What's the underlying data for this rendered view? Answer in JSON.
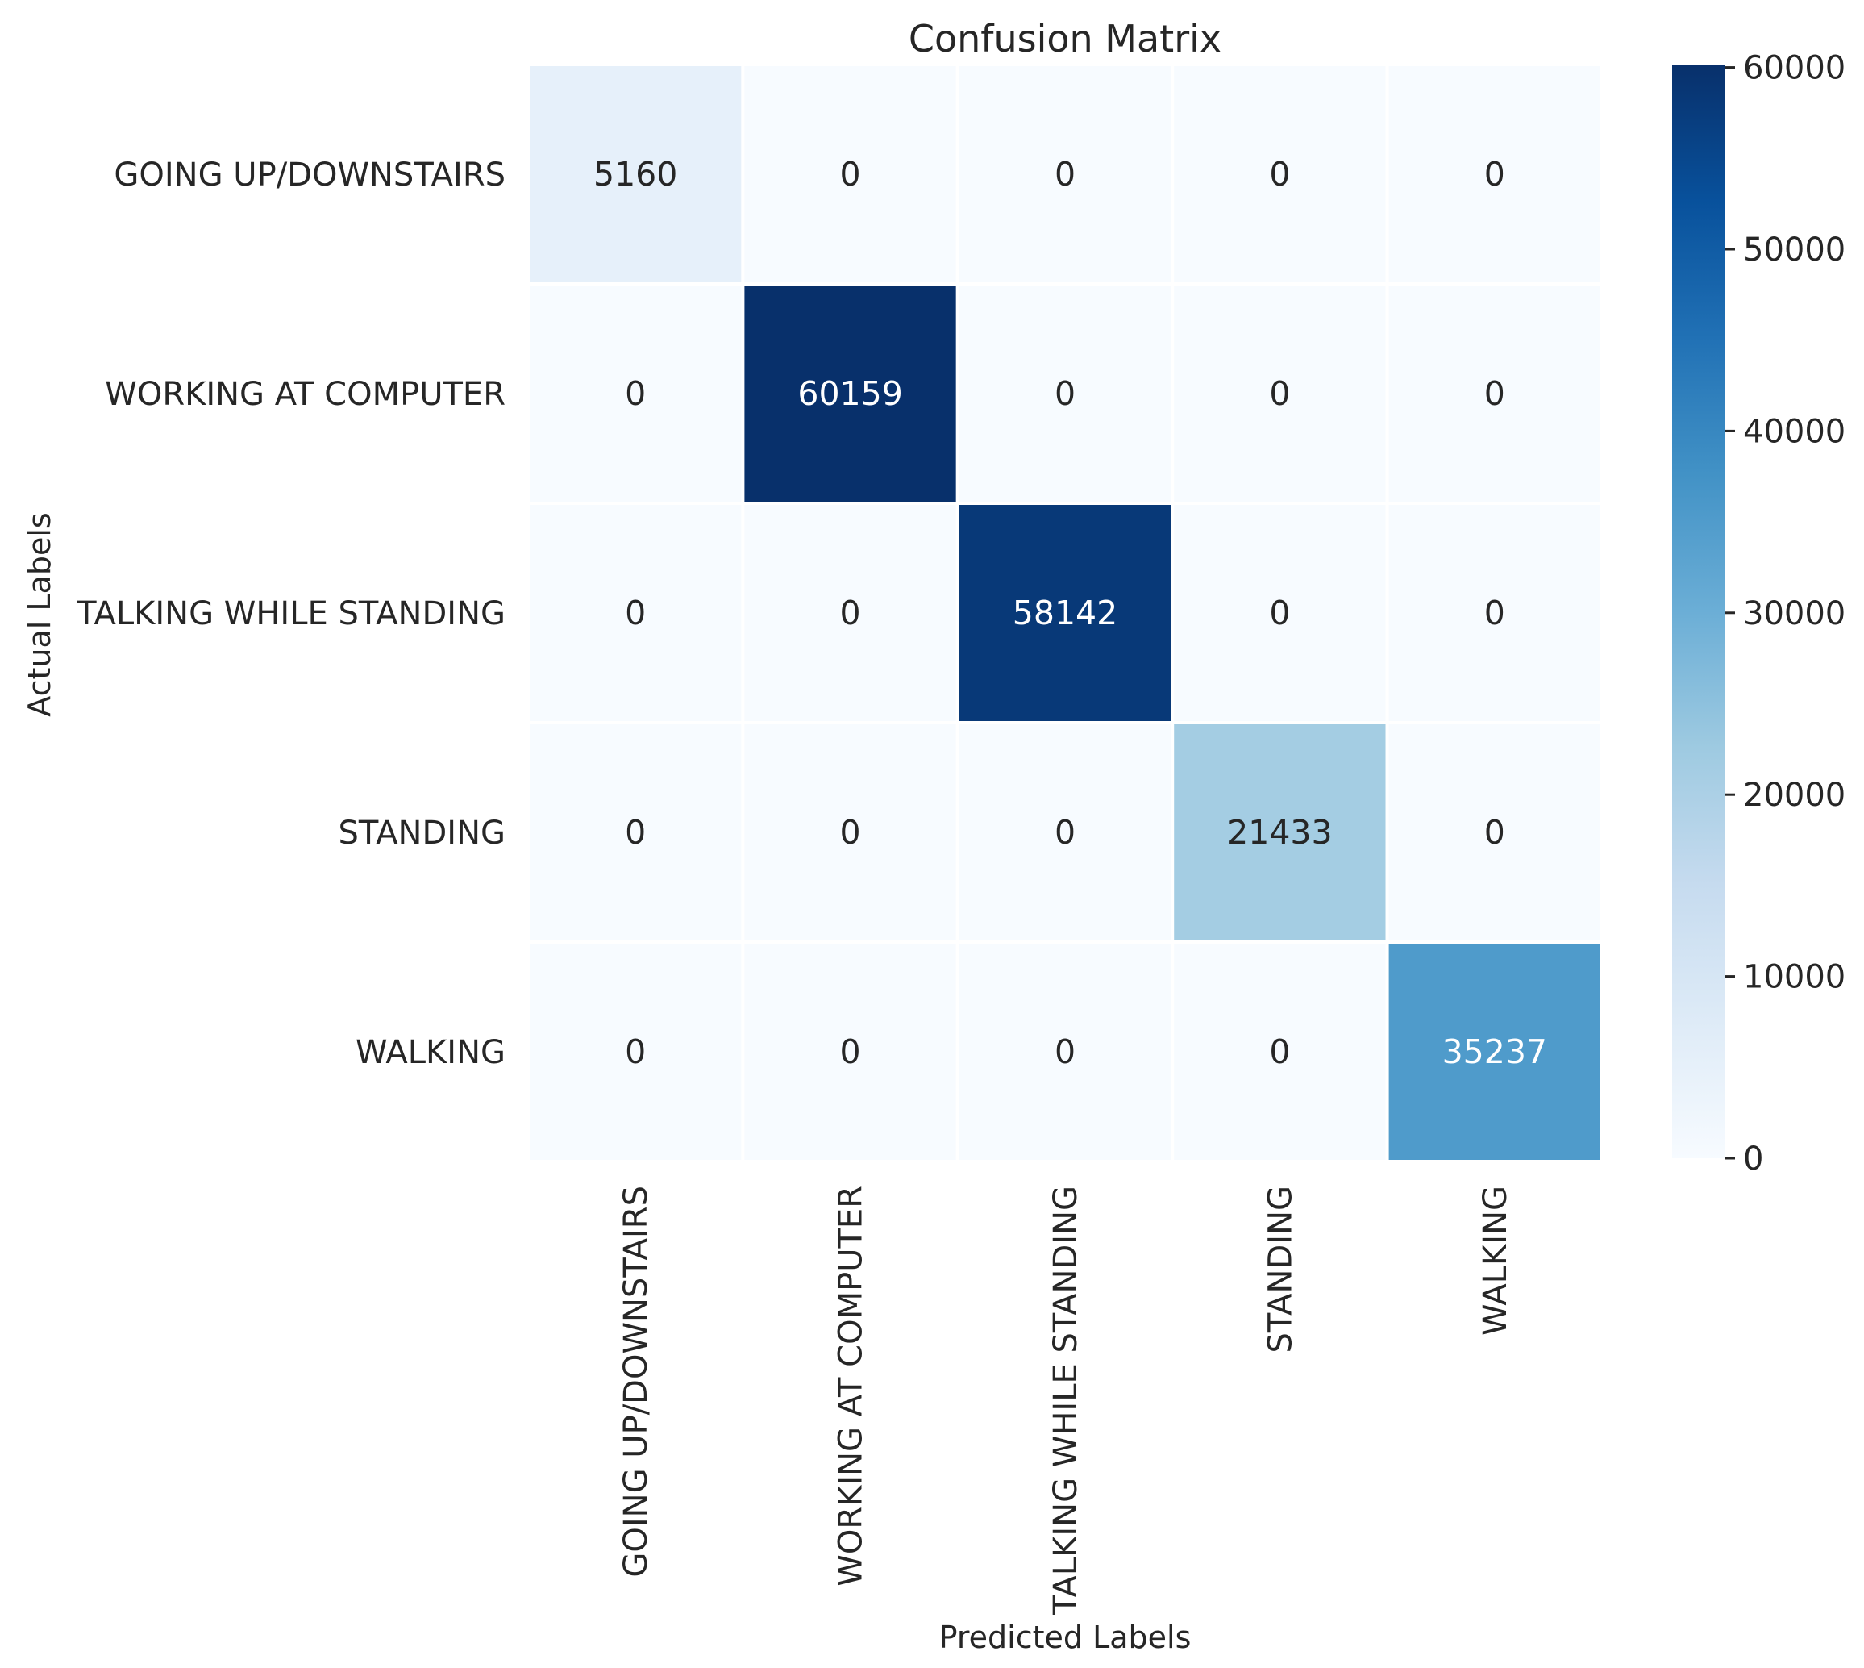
{
  "chart_data": {
    "type": "heatmap",
    "title": "Confusion Matrix",
    "xlabel": "Predicted Labels",
    "ylabel": "Actual Labels",
    "row_labels": [
      "GOING UP/DOWNSTAIRS",
      "WORKING AT COMPUTER",
      "TALKING WHILE STANDING",
      "STANDING",
      "WALKING"
    ],
    "col_labels": [
      "GOING UP/DOWNSTAIRS",
      "WORKING AT COMPUTER",
      "TALKING WHILE STANDING",
      "STANDING",
      "WALKING"
    ],
    "matrix": [
      [
        5160,
        0,
        0,
        0,
        0
      ],
      [
        0,
        60159,
        0,
        0,
        0
      ],
      [
        0,
        0,
        58142,
        0,
        0
      ],
      [
        0,
        0,
        0,
        21433,
        0
      ],
      [
        0,
        0,
        0,
        0,
        35237
      ]
    ],
    "colormap": "Blues",
    "colorbar": {
      "vmin": 0,
      "vmax": 60159,
      "ticks": [
        0,
        10000,
        20000,
        30000,
        40000,
        50000,
        60000
      ]
    },
    "colors": {
      "cmap_stops": [
        "#f7fbff",
        "#deebf7",
        "#c6dbef",
        "#9ecae1",
        "#6baed6",
        "#4292c6",
        "#2171b5",
        "#08519c",
        "#08306b"
      ],
      "text_dark": "#262626",
      "text_light": "#ffffff",
      "grid_line": "#ffffff"
    }
  }
}
